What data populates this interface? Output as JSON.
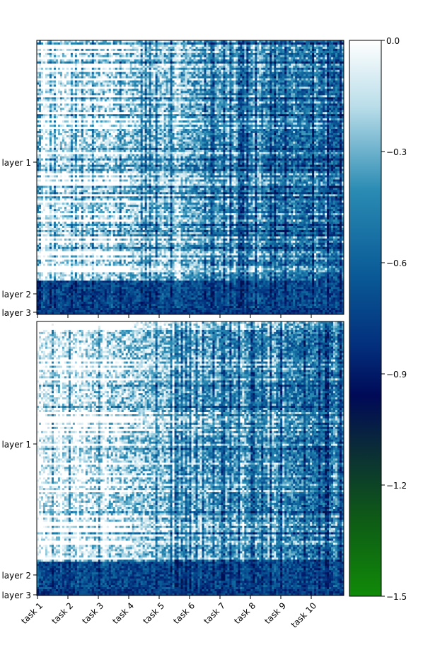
{
  "chart_data": [
    {
      "type": "heatmap",
      "panel": "top",
      "title": "",
      "xlabel": "",
      "ylabel": "",
      "x_tick_labels": [
        "task 1",
        "task 2",
        "task 3",
        "task 4",
        "task 5",
        "task 6",
        "task 7",
        "task 8",
        "task 9",
        "task 10"
      ],
      "y_tick_labels": [
        "layer 1",
        "layer 2",
        "layer 3"
      ],
      "value_range": [
        -1.5,
        0.0
      ],
      "row_groups": [
        {
          "name": "layer 1",
          "rows_fraction": 0.88,
          "typical_value": -0.45
        },
        {
          "name": "layer 2",
          "rows_fraction": 0.1,
          "typical_value": -0.75
        },
        {
          "name": "layer 3",
          "rows_fraction": 0.02,
          "typical_value": -0.78
        }
      ],
      "column_trend": "values near 0.0 for early tasks in layer 1, becoming more negative (about -0.6) toward task 10"
    },
    {
      "type": "heatmap",
      "panel": "bottom",
      "title": "",
      "xlabel": "",
      "ylabel": "",
      "x_tick_labels": [
        "task 1",
        "task 2",
        "task 3",
        "task 4",
        "task 5",
        "task 6",
        "task 7",
        "task 8",
        "task 9",
        "task 10"
      ],
      "y_tick_labels": [
        "layer 1",
        "layer 2",
        "layer 3"
      ],
      "value_range": [
        -1.5,
        0.0
      ],
      "row_groups": [
        {
          "name": "layer 1",
          "rows_fraction": 0.88,
          "typical_value": -0.4
        },
        {
          "name": "layer 2",
          "rows_fraction": 0.1,
          "typical_value": -0.72
        },
        {
          "name": "layer 3",
          "rows_fraction": 0.02,
          "typical_value": -0.76
        }
      ],
      "column_trend": "values near 0.0 for early tasks in layer 1, becoming more negative (about -0.5) toward task 10"
    }
  ],
  "colorbar": {
    "min": -1.5,
    "max": 0.0,
    "tick_labels": [
      "0.0",
      "−0.3",
      "−0.6",
      "−0.9",
      "−1.2",
      "−1.5"
    ],
    "tick_values": [
      0.0,
      -0.3,
      -0.6,
      -0.9,
      -1.2,
      -1.5
    ],
    "colormap": [
      "#ffffff",
      "#2a8bb3",
      "#064e93",
      "#000a57",
      "#0f3a26",
      "#108a08"
    ]
  }
}
